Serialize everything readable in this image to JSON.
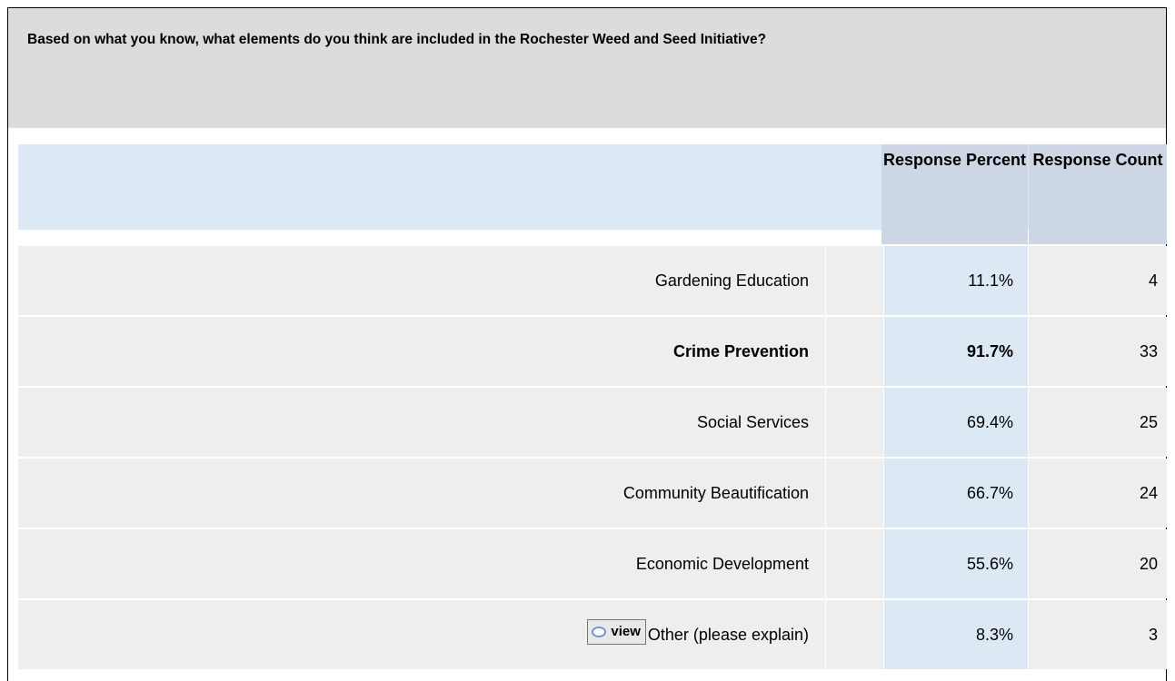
{
  "question": "Based on what you know, what elements do you think are included in the Rochester Weed and Seed Initiative?",
  "table": {
    "headers": [
      "Response Percent",
      "Response Count"
    ],
    "rows": [
      {
        "label": "Gardening Education",
        "percent": "11.1%",
        "count": "4"
      },
      {
        "label": "Crime Prevention",
        "percent": "91.7%",
        "count": "33",
        "bold": true
      },
      {
        "label": "Social Services",
        "percent": "69.4%",
        "count": "25"
      },
      {
        "label": "Community Beautification",
        "percent": "66.7%",
        "count": "24"
      },
      {
        "label": "Economic Development",
        "percent": "55.6%",
        "count": "20"
      },
      {
        "label": "Other (please explain)",
        "percent": "8.3%",
        "count": "3",
        "button": "view"
      }
    ]
  }
}
